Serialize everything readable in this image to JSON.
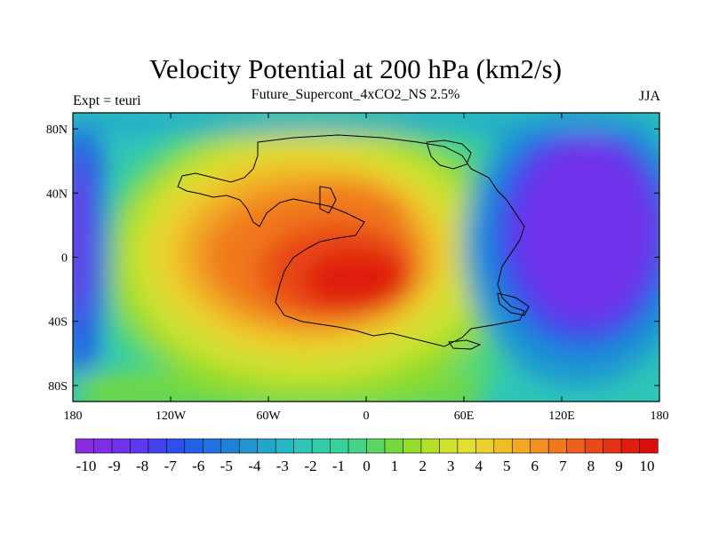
{
  "title": "Velocity Potential at 200 hPa (km2/s)",
  "subtitle": "Future_Supercont_4xCO2_NS 2.5%",
  "left_string": "Expt = teuri",
  "right_string": "JJA",
  "lat_ticks": [
    "80N",
    "40N",
    "0",
    "40S",
    "80S"
  ],
  "lon_ticks": [
    "180",
    "120W",
    "60W",
    "0",
    "60E",
    "120E",
    "180"
  ],
  "colorbar": {
    "labels": [
      "-10",
      "-9",
      "-8",
      "-7",
      "-6",
      "-5",
      "-4",
      "-3",
      "-2",
      "-1",
      "0",
      "1",
      "2",
      "3",
      "4",
      "5",
      "6",
      "7",
      "8",
      "9",
      "10"
    ],
    "colors": [
      "#8a2be2",
      "#7d2ee6",
      "#6f33ea",
      "#5d38ee",
      "#4341ee",
      "#2c50ea",
      "#2161e6",
      "#1f72df",
      "#1e83d8",
      "#1f95d2",
      "#22a6cc",
      "#26b7c4",
      "#2ec6b8",
      "#32ccab",
      "#38d19b",
      "#45d484",
      "#5ad662",
      "#74d93e",
      "#96dc2c",
      "#b4e02b",
      "#cfe230",
      "#e2df33",
      "#ecd12e",
      "#f0bd29",
      "#f2a725",
      "#f29021",
      "#f0781d",
      "#ec601a",
      "#e84917",
      "#e43314",
      "#df1e10",
      "#d90f0d"
    ]
  },
  "map_colors": {
    "ocean_edge": "#26b7c4",
    "lowest": "#6f33ea",
    "highest": "#df1e10"
  }
}
